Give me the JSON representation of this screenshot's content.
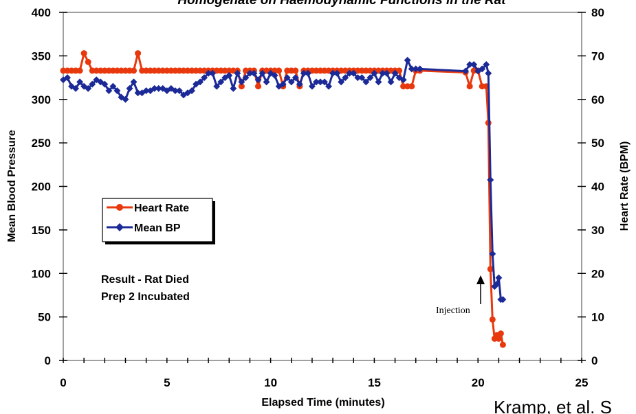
{
  "chart_data": {
    "type": "line",
    "title": "Homogenate on Haemodynamic Functions in the Rat",
    "xlabel": "Elapsed Time (minutes)",
    "ylabel": "Mean Blood Pressure",
    "y2label": "Heart Rate (BPM)",
    "xlim": [
      0,
      25
    ],
    "ylim": [
      0,
      400
    ],
    "y2lim": [
      0,
      80
    ],
    "x_ticks": [
      0,
      5,
      10,
      15,
      20,
      25
    ],
    "y_ticks": [
      0,
      50,
      100,
      150,
      200,
      250,
      300,
      350,
      400
    ],
    "y2_ticks": [
      0,
      10,
      20,
      30,
      40,
      50,
      60,
      70,
      80
    ],
    "grid": false,
    "legend_position": "center-left",
    "series": [
      {
        "name": "Heart Rate",
        "axis": "left",
        "color": "#e8380d",
        "x": [
          0,
          0.2,
          0.4,
          0.6,
          0.8,
          1.0,
          1.2,
          1.4,
          1.6,
          1.8,
          2.0,
          2.2,
          2.4,
          2.6,
          2.8,
          3.0,
          3.2,
          3.4,
          3.6,
          3.8,
          4.0,
          4.2,
          4.4,
          4.6,
          4.8,
          5.0,
          5.2,
          5.4,
          5.6,
          5.8,
          6.0,
          6.2,
          6.4,
          6.6,
          6.8,
          7.0,
          7.2,
          7.4,
          7.6,
          7.8,
          8.0,
          8.2,
          8.4,
          8.6,
          8.8,
          9.0,
          9.2,
          9.4,
          9.6,
          9.8,
          10.0,
          10.2,
          10.4,
          10.6,
          10.8,
          11.0,
          11.2,
          11.4,
          11.6,
          11.8,
          12.0,
          12.2,
          12.4,
          12.6,
          12.8,
          13.0,
          13.2,
          13.4,
          13.6,
          13.8,
          14.0,
          14.2,
          14.4,
          14.6,
          14.8,
          15.0,
          15.2,
          15.4,
          15.6,
          15.8,
          16.0,
          16.2,
          16.4,
          16.6,
          16.8,
          17.0,
          17.2,
          19.4,
          19.6,
          19.8,
          20.0,
          20.2,
          20.4,
          20.5,
          20.6,
          20.7,
          20.8,
          20.9,
          21.0,
          21.1,
          21.2
        ],
        "values": [
          333,
          333,
          333,
          333,
          333,
          353,
          343,
          333,
          333,
          333,
          333,
          333,
          333,
          333,
          333,
          333,
          333,
          333,
          353,
          333,
          333,
          333,
          333,
          333,
          333,
          333,
          333,
          333,
          333,
          333,
          333,
          333,
          333,
          333,
          333,
          333,
          333,
          333,
          333,
          333,
          333,
          333,
          333,
          315,
          333,
          333,
          333,
          315,
          333,
          333,
          333,
          333,
          333,
          315,
          333,
          333,
          333,
          315,
          333,
          333,
          333,
          333,
          333,
          333,
          333,
          333,
          333,
          333,
          333,
          333,
          333,
          333,
          333,
          333,
          333,
          333,
          333,
          333,
          333,
          333,
          333,
          333,
          315,
          315,
          315,
          333,
          333,
          331,
          315,
          333,
          333,
          315,
          315,
          273,
          105,
          47,
          25,
          29,
          25,
          31,
          18
        ]
      },
      {
        "name": "Mean BP",
        "axis": "right",
        "color": "#1c2a97",
        "x": [
          0,
          0.2,
          0.4,
          0.6,
          0.8,
          1.0,
          1.2,
          1.4,
          1.6,
          1.8,
          2.0,
          2.2,
          2.4,
          2.6,
          2.8,
          3.0,
          3.2,
          3.4,
          3.6,
          3.8,
          4.0,
          4.2,
          4.4,
          4.6,
          4.8,
          5.0,
          5.2,
          5.4,
          5.6,
          5.8,
          6.0,
          6.2,
          6.4,
          6.6,
          6.8,
          7.0,
          7.2,
          7.4,
          7.6,
          7.8,
          8.0,
          8.2,
          8.4,
          8.6,
          8.8,
          9.0,
          9.2,
          9.4,
          9.6,
          9.8,
          10.0,
          10.2,
          10.4,
          10.6,
          10.8,
          11.0,
          11.2,
          11.4,
          11.6,
          11.8,
          12.0,
          12.2,
          12.4,
          12.6,
          12.8,
          13.0,
          13.2,
          13.4,
          13.6,
          13.8,
          14.0,
          14.2,
          14.4,
          14.6,
          14.8,
          15.0,
          15.2,
          15.4,
          15.6,
          15.8,
          16.0,
          16.2,
          16.4,
          16.6,
          16.8,
          17.0,
          17.2,
          19.4,
          19.6,
          19.8,
          20.0,
          20.2,
          20.4,
          20.5,
          20.6,
          20.7,
          20.8,
          20.9,
          21.0,
          21.1,
          21.2
        ],
        "values": [
          64.5,
          65,
          63,
          62.5,
          64,
          63,
          62.5,
          63.5,
          64.5,
          64,
          63.5,
          62,
          63,
          62,
          60.5,
          60,
          62.5,
          64,
          61.5,
          61.5,
          62,
          62,
          62.5,
          62.5,
          62.5,
          62,
          62.5,
          62,
          62,
          61,
          61.5,
          62,
          63.5,
          64,
          65,
          66,
          66,
          63,
          64,
          65,
          65.5,
          62.5,
          66,
          64,
          65,
          66,
          66,
          64.5,
          66,
          64,
          66,
          65.5,
          63,
          63.5,
          65,
          64,
          65,
          63.5,
          66,
          66,
          63,
          64,
          64,
          64,
          63,
          66,
          66,
          64,
          65,
          66,
          66,
          65,
          65,
          64,
          65,
          66,
          64,
          66,
          66,
          64,
          66,
          65,
          64.5,
          69,
          67,
          67,
          67,
          66.5,
          68,
          68,
          66.5,
          67,
          68,
          66,
          41.5,
          24.5,
          17,
          17.5,
          19,
          14,
          14
        ]
      }
    ],
    "annotations": [
      {
        "text": "Result - Rat Died"
      },
      {
        "text": "Prep 2 Incubated"
      },
      {
        "text": "Injection",
        "arrow_x": 20.05
      },
      {
        "text": "Kramp, et al. S"
      }
    ]
  }
}
